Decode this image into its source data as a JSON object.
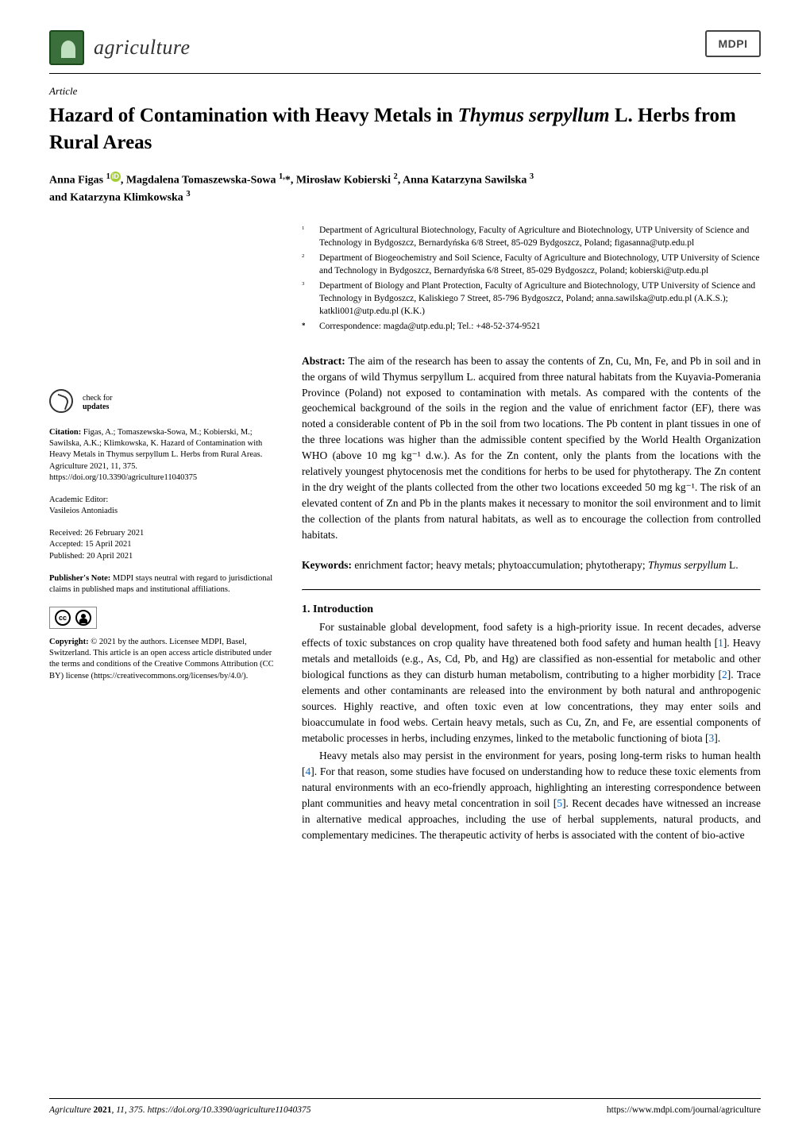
{
  "journal": {
    "name": "agriculture",
    "publisher_logo": "MDPI"
  },
  "article": {
    "label": "Article",
    "title_part1": "Hazard of Contamination with Heavy Metals in ",
    "title_italic": "Thymus serpyllum",
    "title_part2": " L. Herbs from Rural Areas",
    "authors_line1": "Anna Figas ",
    "authors_sup1": "1",
    "authors_mid1": ", Magdalena Tomaszewska-Sowa ",
    "authors_sup2": "1,",
    "authors_star": "*",
    "authors_mid2": ", Mirosław Kobierski ",
    "authors_sup3": "2",
    "authors_mid3": ", Anna Katarzyna Sawilska ",
    "authors_sup4": "3",
    "authors_line2_prefix": "and Katarzyna Klimkowska ",
    "authors_sup5": "3"
  },
  "affiliations": [
    {
      "num": "1",
      "text": "Department of Agricultural Biotechnology, Faculty of Agriculture and Biotechnology, UTP University of Science and Technology in Bydgoszcz, Bernardyńska 6/8 Street, 85-029 Bydgoszcz, Poland; figasanna@utp.edu.pl"
    },
    {
      "num": "2",
      "text": "Department of Biogeochemistry and Soil Science, Faculty of Agriculture and Biotechnology, UTP University of Science and Technology in Bydgoszcz, Bernardyńska 6/8 Street, 85-029 Bydgoszcz, Poland; kobierski@utp.edu.pl"
    },
    {
      "num": "3",
      "text": "Department of Biology and Plant Protection, Faculty of Agriculture and Biotechnology, UTP University of Science and Technology in Bydgoszcz, Kaliskiego 7 Street, 85-796 Bydgoszcz, Poland; anna.sawilska@utp.edu.pl (A.K.S.); katkli001@utp.edu.pl (K.K.)"
    },
    {
      "num": "*",
      "text": "Correspondence: magda@utp.edu.pl; Tel.: +48-52-374-9521"
    }
  ],
  "abstract": {
    "label": "Abstract: ",
    "text": "The aim of the research has been to assay the contents of Zn, Cu, Mn, Fe, and Pb in soil and in the organs of wild Thymus serpyllum L. acquired from three natural habitats from the Kuyavia-Pomerania Province (Poland) not exposed to contamination with metals. As compared with the contents of the geochemical background of the soils in the region and the value of enrichment factor (EF), there was noted a considerable content of Pb in the soil from two locations. The Pb content in plant tissues in one of the three locations was higher than the admissible content specified by the World Health Organization WHO (above 10 mg kg⁻¹ d.w.). As for the Zn content, only the plants from the locations with the relatively youngest phytocenosis met the conditions for herbs to be used for phytotherapy. The Zn content in the dry weight of the plants collected from the other two locations exceeded 50 mg kg⁻¹. The risk of an elevated content of Zn and Pb in the plants makes it necessary to monitor the soil environment and to limit the collection of the plants from natural habitats, as well as to encourage the collection from controlled habitats."
  },
  "keywords": {
    "label": "Keywords: ",
    "text_pre": "enrichment factor; heavy metals; phytoaccumulation; phytotherapy; ",
    "italic": "Thymus serpyllum",
    "text_post": " L."
  },
  "section": {
    "heading": "1. Introduction",
    "para1": "For sustainable global development, food safety is a high-priority issue. In recent decades, adverse effects of toxic substances on crop quality have threatened both food safety and human health [1]. Heavy metals and metalloids (e.g., As, Cd, Pb, and Hg) are classified as non-essential for metabolic and other biological functions as they can disturb human metabolism, contributing to a higher morbidity [2]. Trace elements and other contaminants are released into the environment by both natural and anthropogenic sources. Highly reactive, and often toxic even at low concentrations, they may enter soils and bioaccumulate in food webs. Certain heavy metals, such as Cu, Zn, and Fe, are essential components of metabolic processes in herbs, including enzymes, linked to the metabolic functioning of biota [3].",
    "para2": "Heavy metals also may persist in the environment for years, posing long-term risks to human health [4]. For that reason, some studies have focused on understanding how to reduce these toxic elements from natural environments with an eco-friendly approach, highlighting an interesting correspondence between plant communities and heavy metal concentration in soil [5]. Recent decades have witnessed an increase in alternative medical approaches, including the use of herbal supplements, natural products, and complementary medicines. The therapeutic activity of herbs is associated with the content of bio-active"
  },
  "sidebar": {
    "check_line1": "check for",
    "check_line2": "updates",
    "citation_label": "Citation: ",
    "citation_text": "Figas, A.; Tomaszewska-Sowa, M.; Kobierski, M.; Sawilska, A.K.; Klimkowska, K. Hazard of Contamination with Heavy Metals in Thymus serpyllum L. Herbs from Rural Areas. Agriculture 2021, 11, 375. https://doi.org/10.3390/agriculture11040375",
    "editor_label": "Academic Editor:",
    "editor_name": "Vasileios Antoniadis",
    "received": "Received: 26 February 2021",
    "accepted": "Accepted: 15 April 2021",
    "published": "Published: 20 April 2021",
    "note_label": "Publisher's Note: ",
    "note_text": "MDPI stays neutral with regard to jurisdictional claims in published maps and institutional affiliations.",
    "copyright_label": "Copyright: ",
    "copyright_text": "© 2021 by the authors. Licensee MDPI, Basel, Switzerland. This article is an open access article distributed under the terms and conditions of the Creative Commons Attribution (CC BY) license (https://creativecommons.org/licenses/by/4.0/)."
  },
  "footer": {
    "left_italic": "Agriculture ",
    "left_bold": "2021",
    "left_rest": ", 11, 375. https://doi.org/10.3390/agriculture11040375",
    "right": "https://www.mdpi.com/journal/agriculture"
  },
  "colors": {
    "journal_green": "#3a6e3a",
    "link_blue": "#0066cc",
    "orcid_green": "#a6ce39"
  }
}
